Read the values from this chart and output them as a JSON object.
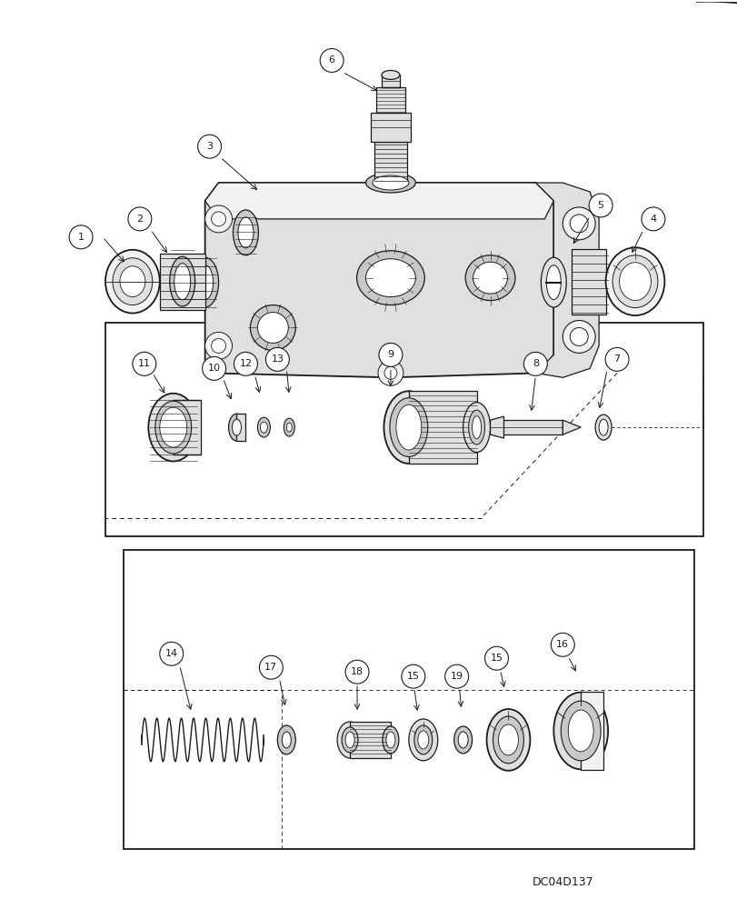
{
  "figure_width": 8.12,
  "figure_height": 10.0,
  "dpi": 100,
  "bg_color": "#ffffff",
  "diagram_code": "DC04D137",
  "line_color": "#1a1a1a",
  "fill_light": "#f2f2f2",
  "fill_mid": "#e0e0e0",
  "fill_dark": "#c8c8c8",
  "callout_r": 0.016
}
